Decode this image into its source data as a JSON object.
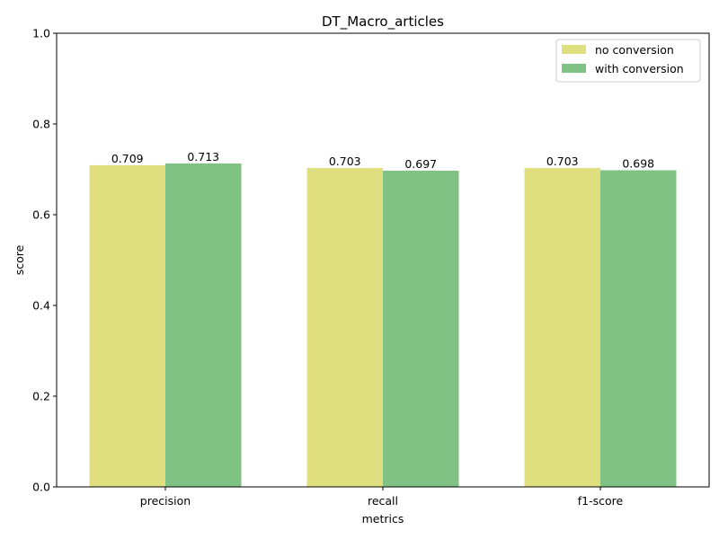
{
  "chart_data": {
    "type": "bar",
    "title": "DT_Macro_articles",
    "xlabel": "metrics",
    "ylabel": "score",
    "categories": [
      "precision",
      "recall",
      "f1-score"
    ],
    "series": [
      {
        "name": "no conversion",
        "values": [
          0.709,
          0.703,
          0.703
        ],
        "labels": [
          "0.709",
          "0.703",
          "0.703"
        ],
        "color": "#dfdf7f"
      },
      {
        "name": "with conversion",
        "values": [
          0.713,
          0.697,
          0.698
        ],
        "labels": [
          "0.713",
          "0.697",
          "0.698"
        ],
        "color": "#80c283"
      }
    ],
    "ylim": [
      0,
      1.0
    ],
    "yticks": [
      "0.0",
      "0.2",
      "0.4",
      "0.6",
      "0.8",
      "1.0"
    ],
    "grid": false,
    "legend_position": "top-right"
  }
}
